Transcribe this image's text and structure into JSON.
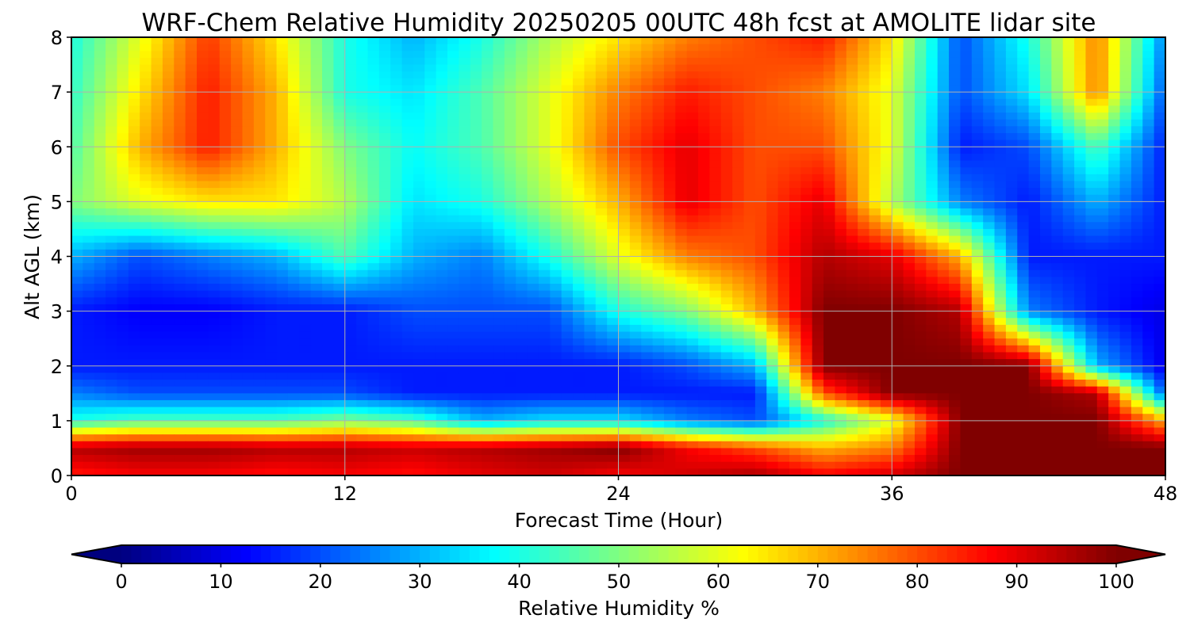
{
  "chart_data": {
    "type": "heatmap",
    "title": "WRF-Chem Relative Humidity 20250205 00UTC 48h fcst at AMOLITE lidar site",
    "xlabel": "Forecast Time (Hour)",
    "ylabel": "Alt AGL (km)",
    "xlim": [
      0,
      48
    ],
    "ylim": [
      0,
      8
    ],
    "xticks": [
      "0",
      "12",
      "24",
      "36",
      "48"
    ],
    "yticks": [
      "0",
      "1",
      "2",
      "3",
      "4",
      "5",
      "6",
      "7",
      "8"
    ],
    "grid": true,
    "colormap": "jet",
    "colorbar": {
      "label": "Relative Humidity %",
      "range": [
        0,
        100
      ],
      "ticks": [
        "0",
        "10",
        "20",
        "30",
        "40",
        "50",
        "60",
        "70",
        "80",
        "90",
        "100"
      ],
      "extend": "both",
      "under_color": "#00007f",
      "over_color": "#7f0000"
    },
    "x": [
      0,
      3,
      6,
      9,
      12,
      15,
      18,
      21,
      24,
      27,
      30,
      33,
      36,
      39,
      42,
      45,
      48
    ],
    "y": [
      0,
      0.5,
      1,
      1.5,
      2,
      3,
      4,
      5,
      6,
      7,
      8
    ],
    "z": [
      [
        85,
        88,
        88,
        86,
        88,
        86,
        90,
        92,
        88,
        92,
        96,
        88,
        92,
        100,
        100,
        100,
        100
      ],
      [
        95,
        97,
        97,
        95,
        95,
        93,
        95,
        97,
        100,
        88,
        80,
        70,
        75,
        100,
        100,
        100,
        100
      ],
      [
        40,
        45,
        45,
        45,
        50,
        45,
        30,
        35,
        35,
        25,
        20,
        40,
        60,
        100,
        100,
        100,
        70
      ],
      [
        25,
        20,
        20,
        20,
        20,
        15,
        15,
        15,
        15,
        15,
        15,
        80,
        100,
        100,
        100,
        95,
        20
      ],
      [
        15,
        15,
        15,
        15,
        15,
        15,
        15,
        15,
        15,
        20,
        30,
        100,
        100,
        100,
        100,
        30,
        10
      ],
      [
        15,
        12,
        12,
        15,
        15,
        20,
        20,
        20,
        40,
        50,
        70,
        100,
        100,
        95,
        25,
        15,
        10
      ],
      [
        30,
        20,
        25,
        30,
        45,
        30,
        25,
        40,
        60,
        75,
        80,
        95,
        90,
        70,
        15,
        15,
        15
      ],
      [
        50,
        60,
        65,
        65,
        55,
        35,
        40,
        55,
        70,
        90,
        80,
        90,
        55,
        25,
        15,
        30,
        15
      ],
      [
        45,
        70,
        85,
        70,
        50,
        38,
        45,
        60,
        80,
        90,
        80,
        80,
        60,
        15,
        20,
        45,
        15
      ],
      [
        42,
        65,
        85,
        70,
        40,
        35,
        45,
        60,
        75,
        85,
        80,
        75,
        60,
        20,
        35,
        75,
        20
      ],
      [
        40,
        60,
        82,
        65,
        40,
        30,
        40,
        55,
        65,
        75,
        80,
        85,
        65,
        20,
        40,
        75,
        25
      ]
    ]
  }
}
